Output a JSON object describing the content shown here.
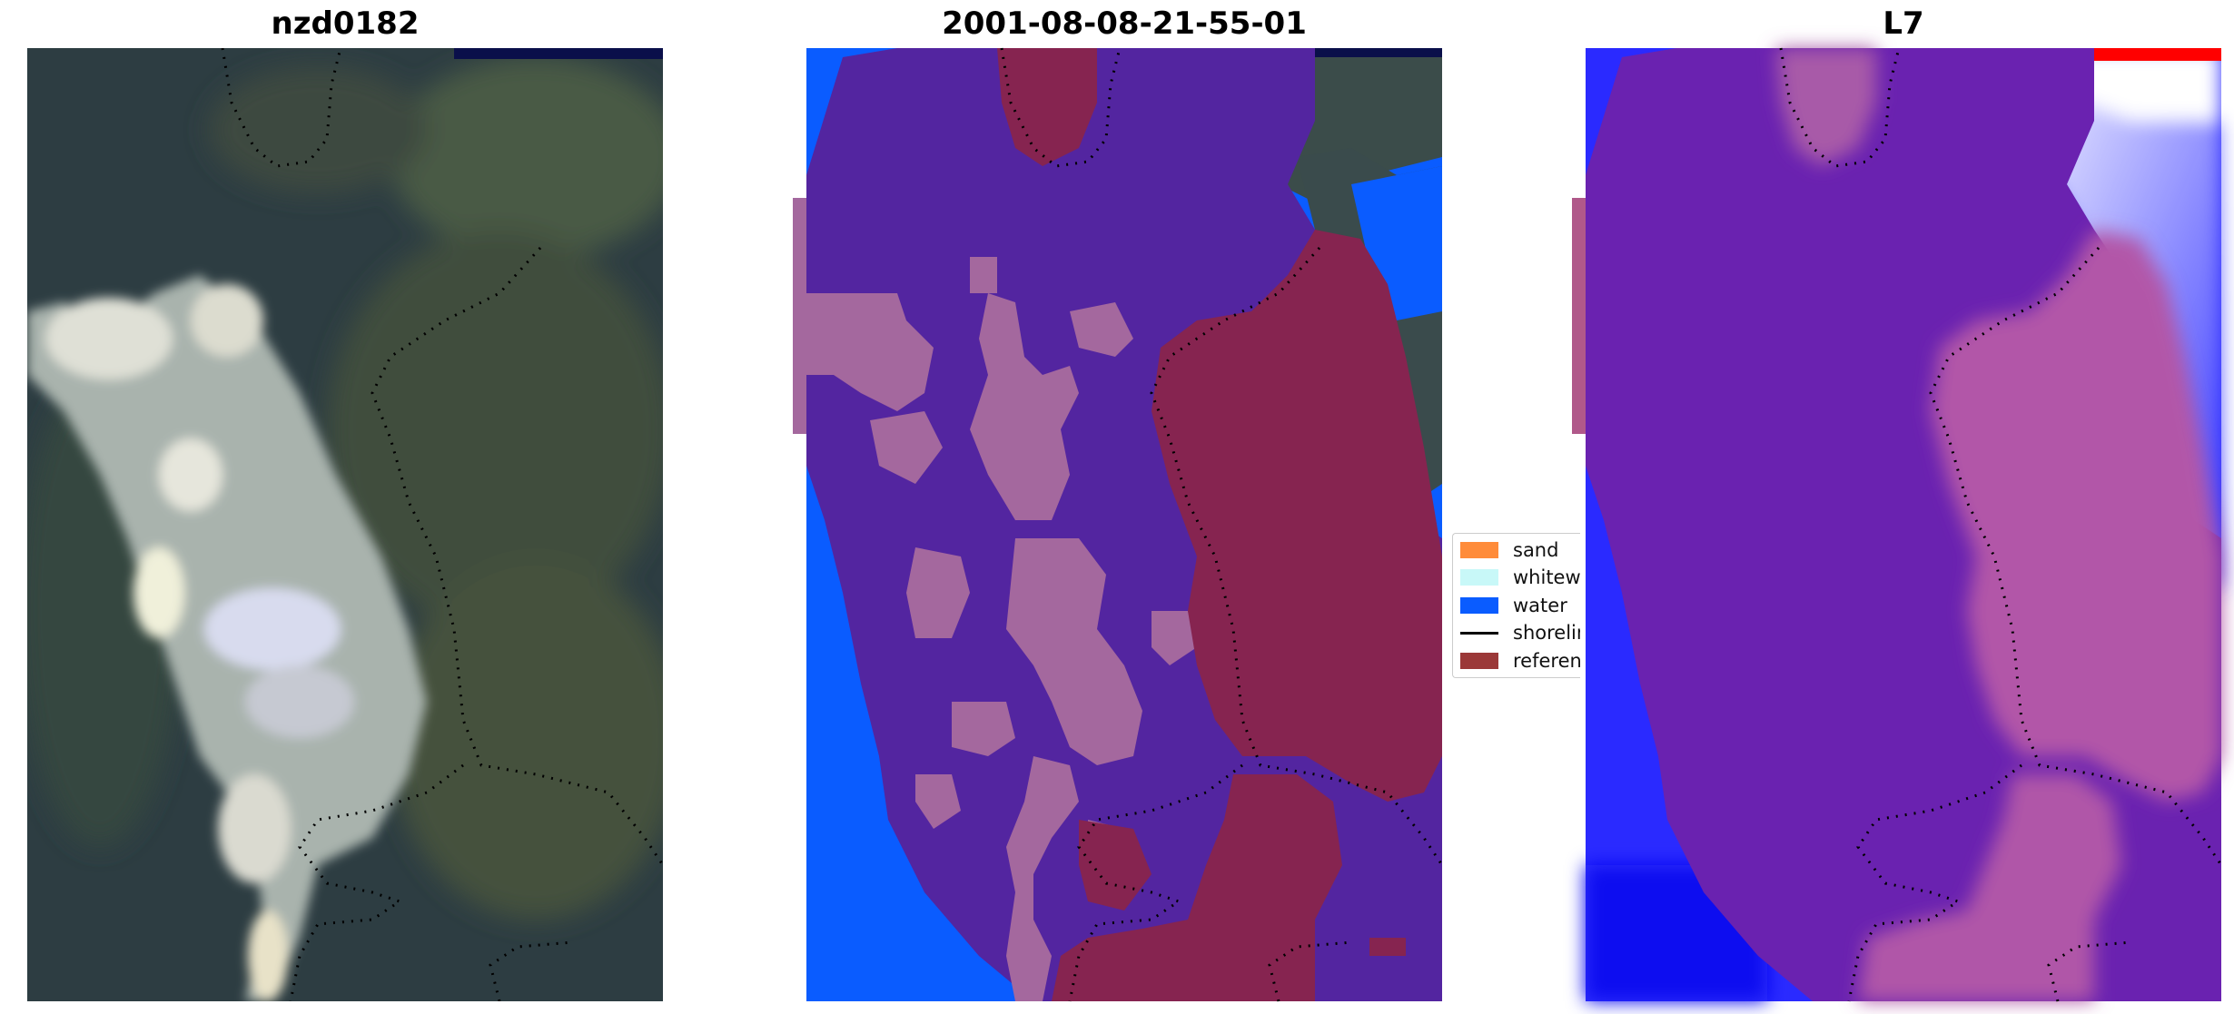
{
  "panels": [
    {
      "title": "nzd0182"
    },
    {
      "title": "2001-08-08-21-55-01"
    },
    {
      "title": "L7"
    }
  ],
  "legend": {
    "items": [
      {
        "label": "sand",
        "color": "#ff8c3a",
        "kind": "patch"
      },
      {
        "label": "whitewa",
        "color": "#c8f8f8",
        "kind": "patch"
      },
      {
        "label": "water",
        "color": "#0a5cff",
        "kind": "patch"
      },
      {
        "label": "shorelin",
        "color": "#000000",
        "kind": "line"
      },
      {
        "label": "referenc",
        "color": "#9b3838",
        "kind": "patch"
      }
    ]
  },
  "colors": {
    "water": "#0a5cff",
    "classified_sand_overlay": "#5325a0",
    "sand_patches": "#a4689e",
    "reference_overlay": "#862450",
    "rgb_water": "#2b3f48",
    "rgb_vegetation": "#3d4c40",
    "rgb_whitewater": "#dcdce2",
    "index_low": "#1f1fff",
    "index_mid": "#6a2ab0",
    "index_high": "#ffffff",
    "index_max": "#ff0000"
  }
}
